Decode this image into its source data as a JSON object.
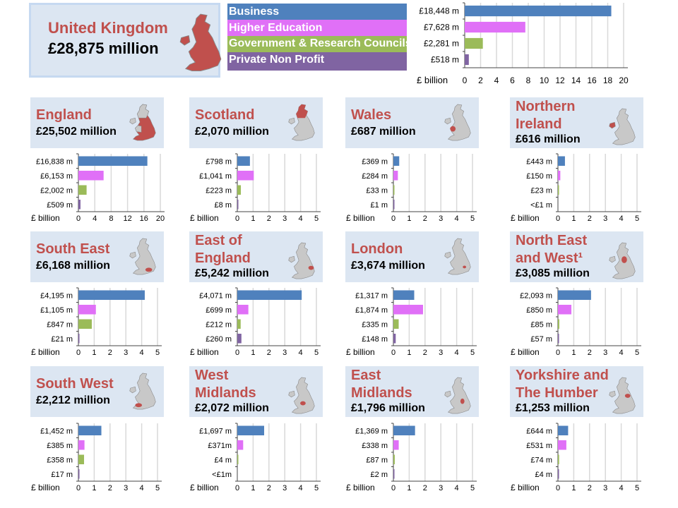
{
  "colors": {
    "business": "#4f81bd",
    "higher_education": "#e070f7",
    "government": "#9bbb59",
    "private_non_profit": "#8064a2",
    "title": "#c0504d",
    "panel_bg": "#dce6f2"
  },
  "uk": {
    "title": "United Kingdom",
    "amount": "£28,875 million"
  },
  "legend": [
    "Business",
    "Higher Education",
    "Government & Research Councils",
    "Private Non Profit"
  ],
  "chart_data": [
    {
      "type": "bar",
      "region": "United Kingdom",
      "xlabel": "£ billion",
      "xlim": [
        0,
        20
      ],
      "ticks": [
        0,
        2,
        4,
        6,
        8,
        10,
        12,
        14,
        16,
        18,
        20
      ],
      "labels": [
        "£18,448 m",
        "£7,628 m",
        "£2,281 m",
        "£518 m"
      ],
      "values": [
        18.448,
        7.628,
        2.281,
        0.518
      ]
    },
    {
      "type": "bar",
      "region": "England",
      "amount": "£25,502 million",
      "xlabel": "£ billion",
      "xlim": [
        0,
        20
      ],
      "ticks": [
        0,
        4,
        8,
        12,
        16,
        20
      ],
      "labels": [
        "£16,838 m",
        "£6,153 m",
        "£2,002 m",
        "£509 m"
      ],
      "values": [
        16.838,
        6.153,
        2.002,
        0.509
      ]
    },
    {
      "type": "bar",
      "region": "Scotland",
      "amount": "£2,070 million",
      "xlabel": "£ billion",
      "xlim": [
        0,
        5
      ],
      "ticks": [
        0,
        1,
        2,
        3,
        4,
        5
      ],
      "labels": [
        "£798 m",
        "£1,041 m",
        "£223 m",
        "£8 m"
      ],
      "values": [
        0.798,
        1.041,
        0.223,
        0.008
      ]
    },
    {
      "type": "bar",
      "region": "Wales",
      "amount": "£687 million",
      "xlabel": "£ billion",
      "xlim": [
        0,
        5
      ],
      "ticks": [
        0,
        1,
        2,
        3,
        4,
        5
      ],
      "labels": [
        "£369 m",
        "£284 m",
        "£33 m",
        "£1 m"
      ],
      "values": [
        0.369,
        0.284,
        0.033,
        0.001
      ]
    },
    {
      "type": "bar",
      "region": "Northern Ireland",
      "amount": "£616 million",
      "xlabel": "£ billion",
      "xlim": [
        0,
        5
      ],
      "ticks": [
        0,
        1,
        2,
        3,
        4,
        5
      ],
      "labels": [
        "£443 m",
        "£150 m",
        "£23 m",
        "<£1 m"
      ],
      "values": [
        0.443,
        0.15,
        0.023,
        0
      ]
    },
    {
      "type": "bar",
      "region": "South East",
      "amount": "£6,168 million",
      "xlabel": "£ billion",
      "xlim": [
        0,
        5
      ],
      "ticks": [
        0,
        1,
        2,
        3,
        4,
        5
      ],
      "labels": [
        "£4,195 m",
        "£1,105 m",
        "£847 m",
        "£21 m"
      ],
      "values": [
        4.195,
        1.105,
        0.847,
        0.021
      ]
    },
    {
      "type": "bar",
      "region": "East of England",
      "amount": "£5,242 million",
      "xlabel": "£ billion",
      "xlim": [
        0,
        5
      ],
      "ticks": [
        0,
        1,
        2,
        3,
        4,
        5
      ],
      "labels": [
        "£4,071 m",
        "£699 m",
        "£212 m",
        "£260 m"
      ],
      "values": [
        4.071,
        0.699,
        0.212,
        0.26
      ]
    },
    {
      "type": "bar",
      "region": "London",
      "amount": "£3,674 million",
      "xlabel": "£ billion",
      "xlim": [
        0,
        5
      ],
      "ticks": [
        0,
        1,
        2,
        3,
        4,
        5
      ],
      "labels": [
        "£1,317 m",
        "£1,874 m",
        "£335 m",
        "£148 m"
      ],
      "values": [
        1.317,
        1.874,
        0.335,
        0.148
      ]
    },
    {
      "type": "bar",
      "region": "North East and West¹",
      "amount": "£3,085 million",
      "xlabel": "£ billion",
      "xlim": [
        0,
        5
      ],
      "ticks": [
        0,
        1,
        2,
        3,
        4,
        5
      ],
      "labels": [
        "£2,093 m",
        "£850 m",
        "£85 m",
        "£57 m"
      ],
      "values": [
        2.093,
        0.85,
        0.085,
        0.057
      ]
    },
    {
      "type": "bar",
      "region": "South West",
      "amount": "£2,212 million",
      "xlabel": "£ billion",
      "xlim": [
        0,
        5
      ],
      "ticks": [
        0,
        1,
        2,
        3,
        4,
        5
      ],
      "labels": [
        "£1,452 m",
        "£385 m",
        "£358 m",
        "£17 m"
      ],
      "values": [
        1.452,
        0.385,
        0.358,
        0.017
      ]
    },
    {
      "type": "bar",
      "region": "West Midlands",
      "amount": "£2,072 million",
      "xlabel": "£ billion",
      "xlim": [
        0,
        5
      ],
      "ticks": [
        0,
        1,
        2,
        3,
        4,
        5
      ],
      "labels": [
        "£1,697 m",
        "£371m",
        "£4 m",
        "<£1m"
      ],
      "values": [
        1.697,
        0.371,
        0.004,
        0
      ]
    },
    {
      "type": "bar",
      "region": "East Midlands",
      "amount": "£1,796 million",
      "xlabel": "£ billion",
      "xlim": [
        0,
        5
      ],
      "ticks": [
        0,
        1,
        2,
        3,
        4,
        5
      ],
      "labels": [
        "£1,369 m",
        "£338 m",
        "£87 m",
        "£2 m"
      ],
      "values": [
        1.369,
        0.338,
        0.087,
        0.002
      ]
    },
    {
      "type": "bar",
      "region": "Yorkshire and The Humber",
      "amount": "£1,253 million",
      "xlabel": "£ billion",
      "xlim": [
        0,
        5
      ],
      "ticks": [
        0,
        1,
        2,
        3,
        4,
        5
      ],
      "labels": [
        "£644 m",
        "£531 m",
        "£74 m",
        "£4 m"
      ],
      "values": [
        0.644,
        0.531,
        0.074,
        0.004
      ]
    }
  ]
}
